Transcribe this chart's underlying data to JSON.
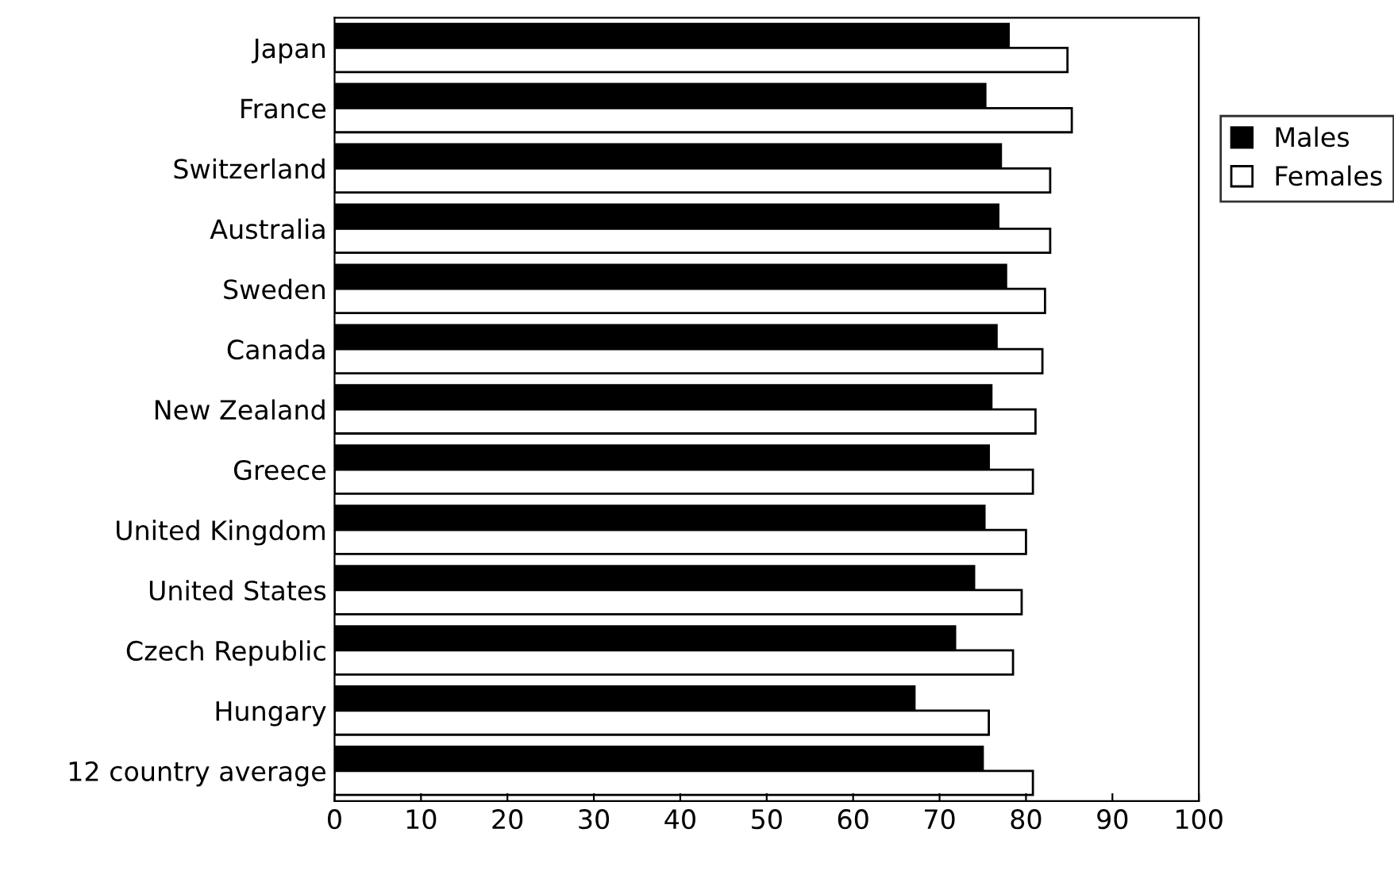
{
  "chart_data": {
    "type": "bar",
    "orientation": "horizontal",
    "categories": [
      "Japan",
      "France",
      "Switzerland",
      "Australia",
      "Sweden",
      "Canada",
      "New Zealand",
      "Greece",
      "United Kingdom",
      "United States",
      "Czech Republic",
      "Hungary",
      "12 country average"
    ],
    "series": [
      {
        "name": "Males",
        "color": "#000000",
        "values": [
          78.0,
          75.3,
          77.1,
          76.8,
          77.7,
          76.6,
          76.0,
          75.7,
          75.2,
          74.0,
          71.8,
          67.1,
          75.0
        ]
      },
      {
        "name": "Females",
        "color": "#ffffff",
        "values": [
          84.8,
          85.3,
          82.8,
          82.8,
          82.2,
          81.9,
          81.1,
          80.8,
          80.0,
          79.5,
          78.5,
          75.7,
          80.8
        ]
      }
    ],
    "xlim": [
      0,
      100
    ],
    "xticks": [
      0,
      10,
      20,
      30,
      40,
      50,
      60,
      70,
      80,
      90,
      100
    ],
    "grid": false,
    "legend": "right"
  }
}
